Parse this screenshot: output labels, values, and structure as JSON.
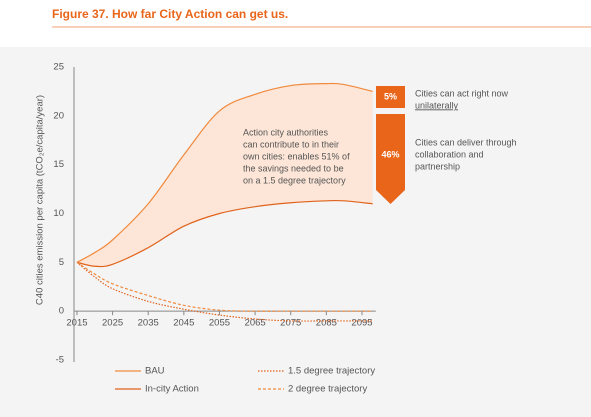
{
  "chart_data": {
    "type": "line",
    "title": "Figure 37. How far City Action can get us.",
    "ylabel": "C40 cities emission per capita (tCO₂e/capita/year)",
    "x": [
      2015,
      2020,
      2025,
      2035,
      2045,
      2055,
      2065,
      2075,
      2085,
      2090,
      2098
    ],
    "xlim": [
      2014,
      2100
    ],
    "xticks": [
      2015,
      2025,
      2035,
      2045,
      2055,
      2065,
      2075,
      2085,
      2095
    ],
    "ylim": [
      -5,
      25
    ],
    "yticks": [
      -5,
      0,
      5,
      10,
      15,
      20,
      25
    ],
    "fill_between": [
      0,
      1
    ],
    "fill_color": "#fde6d7",
    "series": [
      {
        "name": "BAU",
        "color": "#f08a3e",
        "line_style": "solid",
        "values": [
          5,
          6,
          7.3,
          11,
          16,
          20.5,
          22.2,
          23.1,
          23.3,
          23.2,
          22.5
        ]
      },
      {
        "name": "In-city Action",
        "color": "#e0621c",
        "line_style": "solid",
        "values": [
          5,
          4.6,
          4.8,
          6.5,
          8.7,
          10,
          10.7,
          11.1,
          11.3,
          11.3,
          11
        ]
      },
      {
        "name": "1.5 degree trajectory",
        "color": "#e0621c",
        "line_style": "dotted",
        "values": [
          5,
          3.5,
          2.3,
          1,
          0.2,
          -0.4,
          -0.8,
          -1,
          -1,
          -1,
          -1
        ]
      },
      {
        "name": "2 degree trajectory",
        "color": "#f08a3e",
        "line_style": "dashed",
        "values": [
          5,
          3.8,
          2.8,
          1.6,
          0.6,
          0.1,
          0,
          0,
          0,
          0,
          0
        ]
      }
    ],
    "annotation": [
      "Action city authorities",
      "can contribute to in their",
      "own cities: enables 51% of",
      "the savings needed to be",
      "on a 1.5 degree trajectory"
    ],
    "callouts": [
      {
        "label": "5%",
        "text": [
          "Cities can act right now",
          "unilaterally"
        ]
      },
      {
        "label": "46%",
        "text": [
          "Cities can deliver through",
          "collaboration and",
          "partnership"
        ]
      }
    ]
  }
}
